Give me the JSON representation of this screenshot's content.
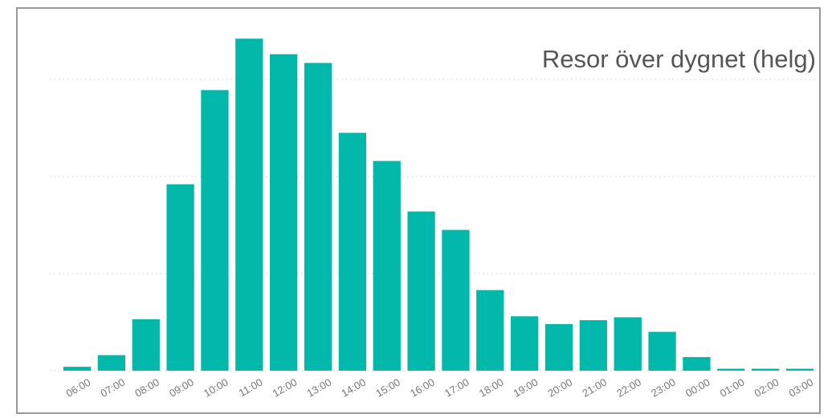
{
  "chart_data": {
    "type": "bar",
    "title": "Resor över dygnet (helg)",
    "categories": [
      "06:00",
      "07:00",
      "08:00",
      "09:00",
      "10:00",
      "11:00",
      "12:00",
      "13:00",
      "14:00",
      "15:00",
      "16:00",
      "17:00",
      "18:00",
      "19:00",
      "20:00",
      "21:00",
      "22:00",
      "23:00",
      "00:00",
      "01:00",
      "02:00",
      "03:00"
    ],
    "values": [
      0.04,
      0.16,
      0.53,
      1.92,
      2.89,
      3.42,
      3.26,
      3.17,
      2.45,
      2.16,
      1.64,
      1.45,
      0.83,
      0.56,
      0.48,
      0.52,
      0.55,
      0.4,
      0.14,
      0.02,
      0.02,
      0.02
    ],
    "color": "#01b8aa",
    "ylim": [
      0,
      3.5
    ],
    "yticks": [
      0,
      1,
      2,
      3
    ],
    "grid": true
  }
}
